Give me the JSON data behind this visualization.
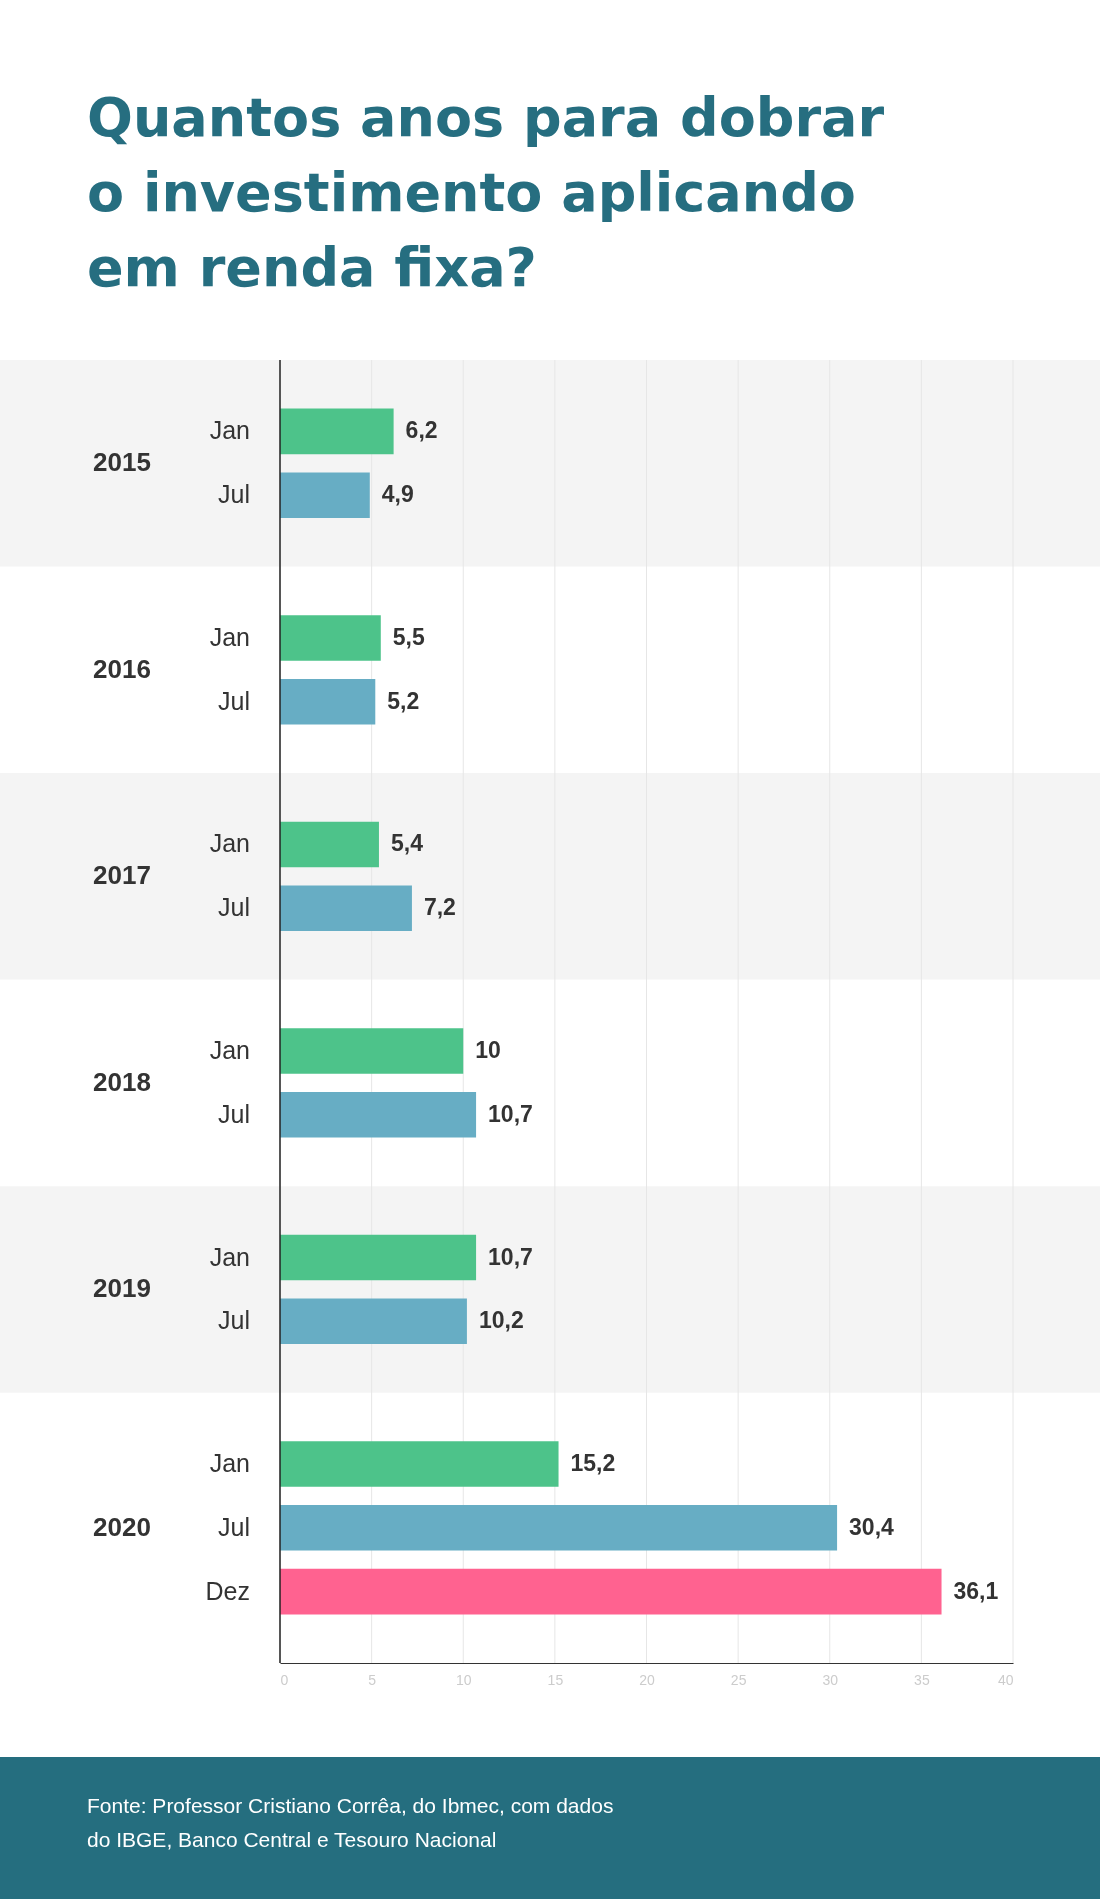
{
  "chart_data": {
    "type": "bar",
    "orientation": "horizontal",
    "title": "Quantos anos para dobrar o investimento aplicando em renda fixa?",
    "categories": [
      "2015",
      "2016",
      "2017",
      "2018",
      "2019",
      "2020"
    ],
    "series": [
      {
        "name": "Jan",
        "color": "#4dc38a",
        "values": [
          6.2,
          5.5,
          5.4,
          10,
          10.7,
          15.2
        ],
        "value_labels": [
          "6,2",
          "5,5",
          "5,4",
          "10",
          "10,7",
          "15,2"
        ]
      },
      {
        "name": "Jul",
        "color": "#67adc4",
        "values": [
          4.9,
          5.2,
          7.2,
          10.7,
          10.2,
          30.4
        ],
        "value_labels": [
          "4,9",
          "5,2",
          "7,2",
          "10,7",
          "10,2",
          "30,4"
        ]
      },
      {
        "name": "Dez",
        "color": "#ff6290",
        "values": [
          null,
          null,
          null,
          null,
          null,
          36.1
        ],
        "value_labels": [
          null,
          null,
          null,
          null,
          null,
          "36,1"
        ]
      }
    ],
    "bands": [
      {
        "axis": "y",
        "from": "2015",
        "to": "2015",
        "color": "#f4f4f4"
      },
      {
        "axis": "y",
        "from": "2017",
        "to": "2017",
        "color": "#f4f4f4"
      },
      {
        "axis": "y",
        "from": "2019",
        "to": "2019",
        "color": "#f4f4f4"
      }
    ],
    "xlim": [
      0,
      40
    ],
    "xticks": [
      0,
      5,
      10,
      15,
      20,
      25,
      30,
      35,
      40
    ],
    "grid": "x",
    "annotations": [
      "Fonte: Professor Cristiano Corrêa, do Ibmec, com dados do IBGE, Banco Central e Tesouro Nacional"
    ]
  }
}
